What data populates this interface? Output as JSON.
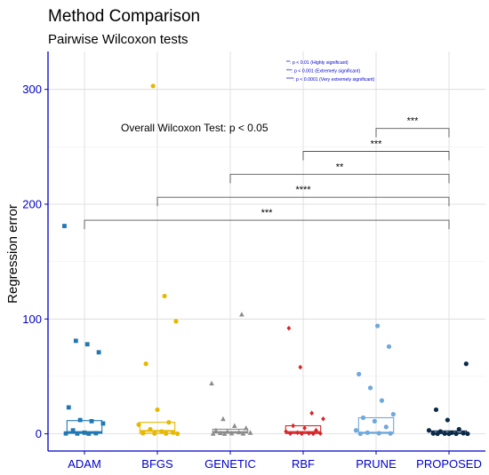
{
  "chart_data": {
    "type": "box",
    "title": "Method Comparison",
    "subtitle": "Pairwise Wilcoxon tests",
    "xlabel": "",
    "ylabel": "Regression error",
    "ylim": [
      -15,
      333
    ],
    "yticks": [
      0,
      100,
      200,
      300
    ],
    "grid": true,
    "categories": [
      "ADAM",
      "BFGS",
      "GENETIC",
      "RBF",
      "PRUNE",
      "PROPOSED"
    ],
    "series": [
      {
        "name": "ADAM",
        "color": "#1f77b4",
        "marker": "square",
        "box": {
          "q1": 0.5,
          "median": 1.5,
          "q3": 11.5
        },
        "points": [
          181,
          81,
          78,
          71,
          23,
          12,
          11,
          9,
          3,
          1,
          0.5,
          0.3,
          0.2,
          0.1
        ]
      },
      {
        "name": "BFGS",
        "color": "#e6b800",
        "marker": "circle",
        "box": {
          "q1": 0.5,
          "median": 2.5,
          "q3": 10
        },
        "points": [
          303,
          120,
          98,
          61,
          21,
          10,
          8,
          4,
          2,
          1,
          0.5,
          0.3,
          0.2,
          0.1
        ]
      },
      {
        "name": "GENETIC",
        "color": "#8c8c8c",
        "marker": "triangle",
        "box": {
          "q1": 0.8,
          "median": 1.5,
          "q3": 4
        },
        "points": [
          104,
          44,
          13,
          7,
          5,
          3,
          2,
          1.5,
          1,
          0.8,
          0.5,
          0.3,
          0.2,
          0.1
        ]
      },
      {
        "name": "RBF",
        "color": "#d62728",
        "marker": "diamond",
        "box": {
          "q1": 0.3,
          "median": 1.5,
          "q3": 7
        },
        "points": [
          92,
          58,
          18,
          13,
          7,
          5,
          3,
          2,
          1,
          0.5,
          0.3,
          0.2,
          0.1,
          0.05
        ]
      },
      {
        "name": "PRUNE",
        "color": "#6fa8dc",
        "marker": "circle",
        "box": {
          "q1": 0.5,
          "median": 1,
          "q3": 14
        },
        "points": [
          94,
          76,
          52,
          40,
          29,
          17,
          14,
          11,
          6,
          3,
          1,
          0.5,
          0.3,
          0.1
        ]
      },
      {
        "name": "PROPOSED",
        "color": "#0b2a4a",
        "marker": "circle",
        "box": {
          "q1": 0.3,
          "median": 0.8,
          "q3": 2.5
        },
        "points": [
          61,
          21,
          12,
          4,
          3,
          2,
          1,
          0.5,
          0.3,
          0.2,
          0.1,
          0.05,
          0.02,
          0.01
        ]
      }
    ],
    "annotation": "Overall Wilcoxon Test: p < 0.05",
    "significance_notes": [
      "**: p < 0.01 (Highly significant)",
      "***: p < 0.001 (Extremely significant)",
      "****: p < 0.0001 (Very extremely significant)"
    ],
    "comparisons": [
      {
        "group1": "PRUNE",
        "group2": "PROPOSED",
        "y": 266,
        "label": "***"
      },
      {
        "group1": "RBF",
        "group2": "PROPOSED",
        "y": 246,
        "label": "***"
      },
      {
        "group1": "GENETIC",
        "group2": "PROPOSED",
        "y": 226,
        "label": "**"
      },
      {
        "group1": "BFGS",
        "group2": "PROPOSED",
        "y": 206,
        "label": "****"
      },
      {
        "group1": "ADAM",
        "group2": "PROPOSED",
        "y": 186,
        "label": "***"
      }
    ],
    "axis_color": "#0000cc"
  }
}
